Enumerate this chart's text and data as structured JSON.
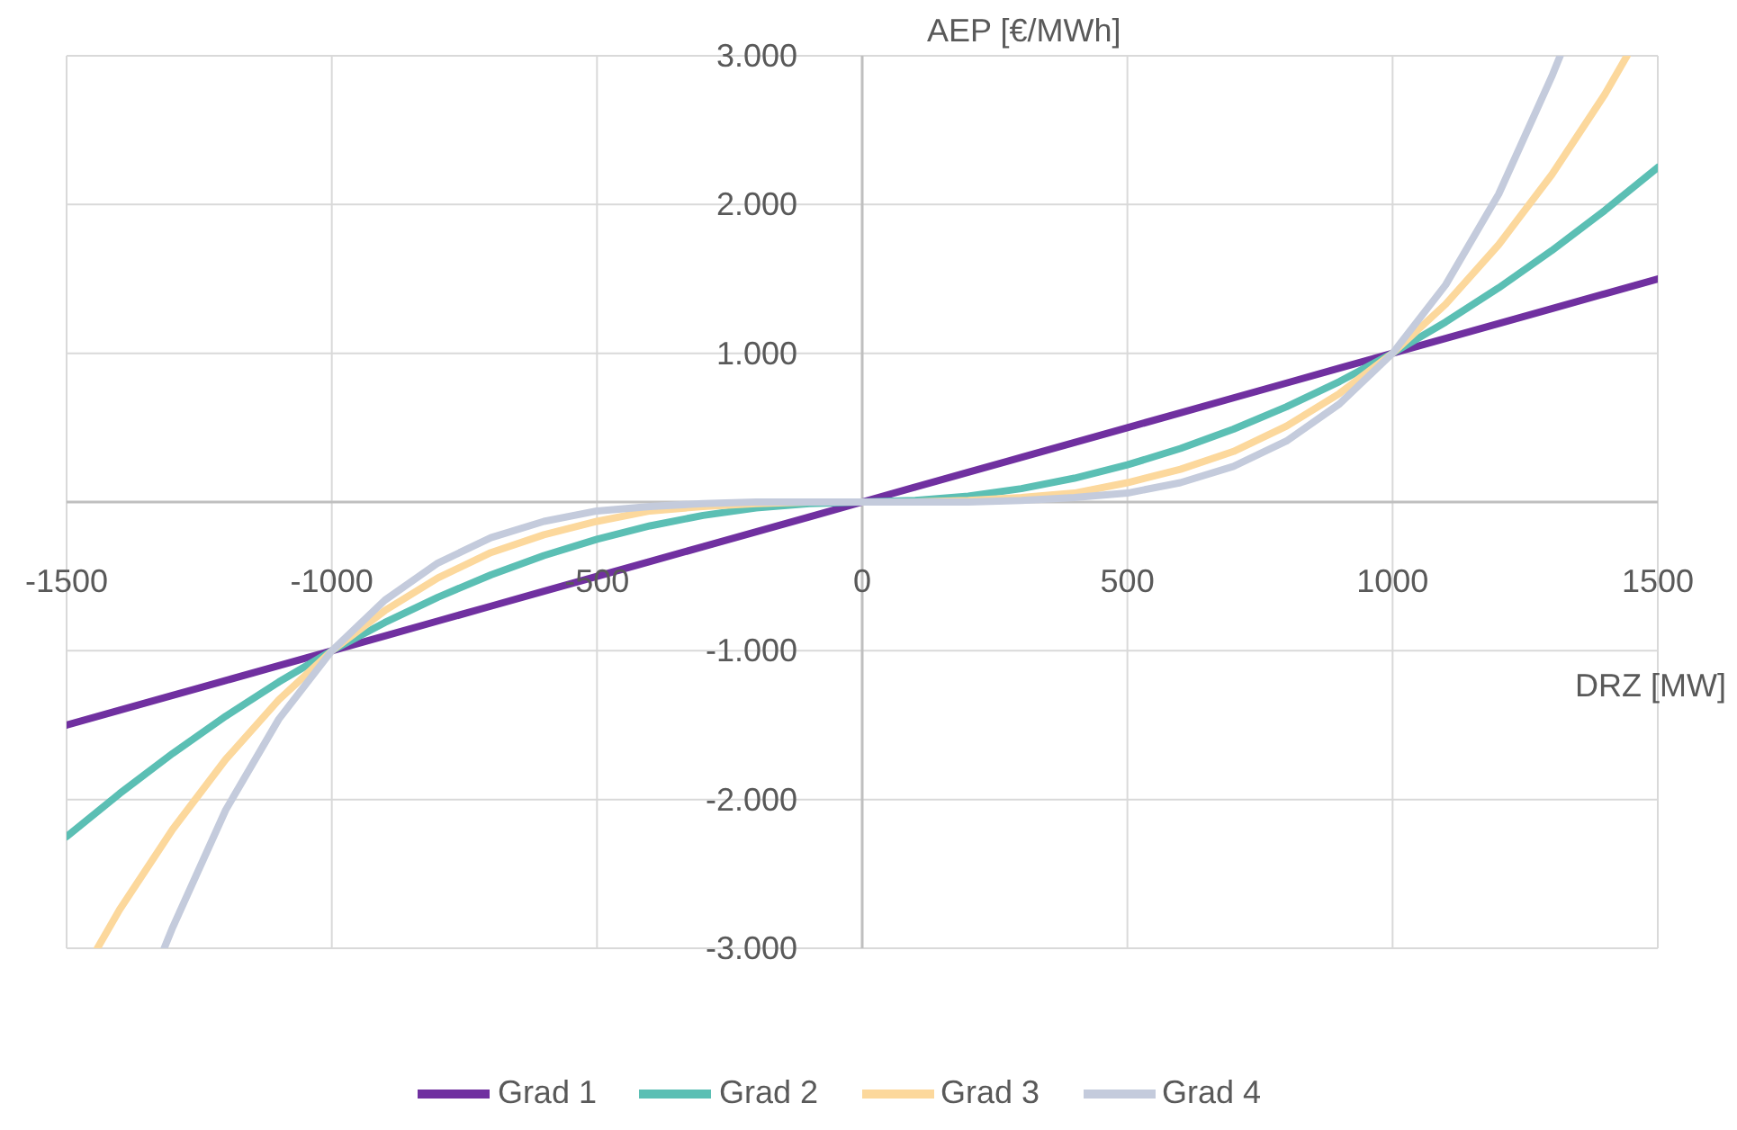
{
  "chart_data": {
    "type": "line",
    "xlabel": "DRZ [MW]",
    "ylabel": "AEP [€/MWh]",
    "xlim": [
      -1500,
      1500
    ],
    "xticks": [
      -1500,
      -1000,
      -500,
      0,
      500,
      1000,
      1500
    ],
    "ylim": [
      -3000,
      3000
    ],
    "yticks": [
      {
        "value": -3000,
        "label": "-3.000"
      },
      {
        "value": -2000,
        "label": "-2.000"
      },
      {
        "value": -1000,
        "label": "-1.000"
      },
      {
        "value": 1000,
        "label": "1.000"
      },
      {
        "value": 2000,
        "label": "2.000"
      },
      {
        "value": 3000,
        "label": "3.000"
      }
    ],
    "grid": true,
    "legend": "bottom",
    "marker": "none",
    "line_style": "solid",
    "series": [
      {
        "name": "Grad 1",
        "color": "#7030a0",
        "x": [
          -1500,
          -1400,
          -1300,
          -1200,
          -1100,
          -1000,
          -900,
          -800,
          -700,
          -600,
          -500,
          -400,
          -300,
          -200,
          -100,
          0,
          100,
          200,
          300,
          400,
          500,
          600,
          700,
          800,
          900,
          1000,
          1100,
          1200,
          1300,
          1400,
          1500
        ],
        "values": [
          -1500,
          -1400,
          -1300,
          -1200,
          -1100,
          -1000,
          -900,
          -800,
          -700,
          -600,
          -500,
          -400,
          -300,
          -200,
          -100,
          0,
          100,
          200,
          300,
          400,
          500,
          600,
          700,
          800,
          900,
          1000,
          1100,
          1200,
          1300,
          1400,
          1500
        ]
      },
      {
        "name": "Grad 2",
        "color": "#5bbfb4",
        "x": [
          -1500,
          -1400,
          -1300,
          -1200,
          -1100,
          -1000,
          -900,
          -800,
          -700,
          -600,
          -500,
          -400,
          -300,
          -200,
          -100,
          0,
          100,
          200,
          300,
          400,
          500,
          600,
          700,
          800,
          900,
          1000,
          1100,
          1200,
          1300,
          1400,
          1500
        ],
        "values": [
          -2250,
          -1960,
          -1690,
          -1440,
          -1210,
          -1000,
          -810,
          -640,
          -490,
          -360,
          -250,
          -160,
          -90,
          -40,
          -10,
          0,
          10,
          40,
          90,
          160,
          250,
          360,
          490,
          640,
          810,
          1000,
          1210,
          1440,
          1690,
          1960,
          2250
        ]
      },
      {
        "name": "Grad 3",
        "color": "#fcd89c",
        "x": [
          -1442,
          -1400,
          -1300,
          -1200,
          -1100,
          -1000,
          -900,
          -800,
          -700,
          -600,
          -500,
          -400,
          -300,
          -200,
          -100,
          0,
          100,
          200,
          300,
          400,
          500,
          600,
          700,
          800,
          900,
          1000,
          1100,
          1200,
          1300,
          1400,
          1442
        ],
        "values": [
          -3000,
          -2740,
          -2200,
          -1730,
          -1330,
          -1000,
          -730,
          -510,
          -340,
          -220,
          -130,
          -60,
          -30,
          -10,
          0,
          0,
          0,
          10,
          30,
          60,
          130,
          220,
          340,
          510,
          730,
          1000,
          1330,
          1730,
          2200,
          2740,
          3000
        ]
      },
      {
        "name": "Grad 4",
        "color": "#c4cbdc",
        "x": [
          -1316,
          -1300,
          -1200,
          -1100,
          -1000,
          -900,
          -800,
          -700,
          -600,
          -500,
          -400,
          -300,
          -200,
          -100,
          0,
          100,
          200,
          300,
          400,
          500,
          600,
          700,
          800,
          900,
          1000,
          1100,
          1200,
          1300,
          1316
        ],
        "values": [
          -3000,
          -2860,
          -2070,
          -1460,
          -1000,
          -660,
          -410,
          -240,
          -130,
          -60,
          -30,
          -10,
          0,
          0,
          0,
          0,
          0,
          10,
          30,
          60,
          130,
          240,
          410,
          660,
          1000,
          1460,
          2070,
          2860,
          3000
        ]
      }
    ]
  }
}
